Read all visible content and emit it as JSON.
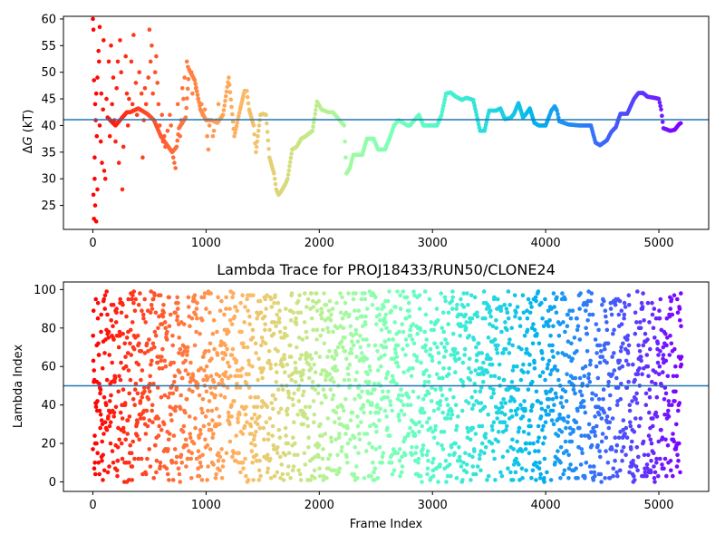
{
  "chart_data": [
    {
      "type": "scatter",
      "title": "",
      "xlabel": "",
      "ylabel": "ΔG (kT)",
      "ylabel_italic": "G",
      "xlim": [
        -260,
        5440
      ],
      "ylim": [
        20.5,
        60.5
      ],
      "xticks": [
        0,
        1000,
        2000,
        3000,
        4000,
        5000
      ],
      "yticks": [
        25,
        30,
        35,
        40,
        45,
        50,
        55,
        60
      ],
      "hline": 41.1,
      "hline_color": "#1f77b4",
      "colormap": "rainbow_r",
      "grid": false,
      "trace": [
        [
          130,
          41.5
        ],
        [
          200,
          40
        ],
        [
          300,
          42.5
        ],
        [
          330,
          42.5
        ],
        [
          400,
          43.2
        ],
        [
          480,
          42.2
        ],
        [
          540,
          41
        ],
        [
          600,
          38
        ],
        [
          650,
          36.5
        ],
        [
          700,
          35
        ],
        [
          740,
          36
        ],
        [
          760,
          39.5
        ],
        [
          820,
          41.5
        ],
        [
          850,
          50.5
        ],
        [
          900,
          48.5
        ],
        [
          950,
          43
        ],
        [
          1000,
          41
        ],
        [
          1050,
          41
        ],
        [
          1100,
          40.5
        ],
        [
          1150,
          42
        ],
        [
          1200,
          49
        ],
        [
          1250,
          38
        ],
        [
          1300,
          43
        ],
        [
          1340,
          46.5
        ],
        [
          1360,
          46.5
        ],
        [
          1380,
          43
        ],
        [
          1420,
          40
        ],
        [
          1440,
          35
        ],
        [
          1480,
          42
        ],
        [
          1500,
          42.2
        ],
        [
          1530,
          42
        ],
        [
          1560,
          34
        ],
        [
          1600,
          31
        ],
        [
          1620,
          28
        ],
        [
          1640,
          27
        ],
        [
          1660,
          27.5
        ],
        [
          1700,
          29
        ],
        [
          1720,
          30
        ],
        [
          1760,
          35.5
        ],
        [
          1800,
          36
        ],
        [
          1840,
          37.5
        ],
        [
          1880,
          38
        ],
        [
          1940,
          39
        ],
        [
          1980,
          44.5
        ],
        [
          2020,
          43
        ],
        [
          2080,
          42.5
        ],
        [
          2120,
          42.5
        ],
        [
          2180,
          41
        ],
        [
          2220,
          40
        ],
        [
          2240,
          31
        ],
        [
          2270,
          32
        ],
        [
          2300,
          34.5
        ],
        [
          2380,
          34.5
        ],
        [
          2420,
          37.5
        ],
        [
          2480,
          37.5
        ],
        [
          2520,
          35.5
        ],
        [
          2580,
          35.5
        ],
        [
          2620,
          37.5
        ],
        [
          2660,
          40
        ],
        [
          2700,
          41
        ],
        [
          2740,
          40.5
        ],
        [
          2780,
          40
        ],
        [
          2800,
          40
        ],
        [
          2840,
          41
        ],
        [
          2880,
          42
        ],
        [
          2920,
          40
        ],
        [
          2980,
          40
        ],
        [
          3040,
          40
        ],
        [
          3080,
          42
        ],
        [
          3120,
          46
        ],
        [
          3160,
          46.2
        ],
        [
          3200,
          45.5
        ],
        [
          3260,
          44.8
        ],
        [
          3300,
          45.2
        ],
        [
          3360,
          44.8
        ],
        [
          3390,
          42
        ],
        [
          3420,
          39
        ],
        [
          3460,
          39
        ],
        [
          3500,
          42.8
        ],
        [
          3560,
          42.8
        ],
        [
          3600,
          43.2
        ],
        [
          3640,
          41.2
        ],
        [
          3690,
          41.4
        ],
        [
          3720,
          42.2
        ],
        [
          3760,
          44.2
        ],
        [
          3800,
          41.5
        ],
        [
          3820,
          42
        ],
        [
          3860,
          43.2
        ],
        [
          3900,
          40.5
        ],
        [
          3940,
          40
        ],
        [
          4000,
          40
        ],
        [
          4050,
          42.8
        ],
        [
          4080,
          43.6
        ],
        [
          4100,
          42.8
        ],
        [
          4120,
          40.8
        ],
        [
          4200,
          40.2
        ],
        [
          4300,
          40
        ],
        [
          4400,
          40
        ],
        [
          4440,
          36.8
        ],
        [
          4480,
          36.3
        ],
        [
          4540,
          37.2
        ],
        [
          4580,
          38.8
        ],
        [
          4620,
          39.7
        ],
        [
          4660,
          42.2
        ],
        [
          4720,
          42.2
        ],
        [
          4780,
          45
        ],
        [
          4820,
          46.1
        ],
        [
          4860,
          46.1
        ],
        [
          4900,
          45.4
        ],
        [
          4960,
          45.2
        ],
        [
          5000,
          45
        ],
        [
          5020,
          43
        ],
        [
          5040,
          39.5
        ],
        [
          5100,
          39
        ],
        [
          5140,
          39.2
        ],
        [
          5180,
          40.3
        ],
        [
          5200,
          40.5
        ]
      ],
      "points": [
        [
          0,
          60
        ],
        [
          5,
          58
        ],
        [
          10,
          22.5
        ],
        [
          20,
          25
        ],
        [
          30,
          22
        ],
        [
          15,
          30
        ],
        [
          40,
          28
        ],
        [
          10,
          48.5
        ],
        [
          30,
          46
        ],
        [
          20,
          44
        ],
        [
          50,
          54
        ],
        [
          60,
          58.5
        ],
        [
          35,
          38
        ],
        [
          70,
          37
        ],
        [
          80,
          33
        ],
        [
          100,
          31.5
        ],
        [
          120,
          45
        ],
        [
          140,
          52
        ],
        [
          60,
          40
        ],
        [
          90,
          43
        ],
        [
          160,
          55
        ],
        [
          180,
          49
        ],
        [
          200,
          37
        ],
        [
          220,
          52
        ],
        [
          240,
          56
        ],
        [
          260,
          28
        ],
        [
          280,
          42
        ],
        [
          300,
          46
        ],
        [
          320,
          45
        ],
        [
          340,
          52
        ],
        [
          360,
          57
        ],
        [
          380,
          48
        ],
        [
          420,
          43
        ],
        [
          440,
          34
        ],
        [
          460,
          47
        ],
        [
          500,
          58
        ],
        [
          520,
          55
        ],
        [
          560,
          53
        ],
        [
          580,
          44
        ],
        [
          620,
          37
        ],
        [
          660,
          39
        ],
        [
          680,
          42
        ],
        [
          720,
          33
        ],
        [
          780,
          41
        ],
        [
          800,
          45
        ],
        [
          830,
          52
        ],
        [
          870,
          50
        ],
        [
          960,
          44
        ],
        [
          1020,
          35.5
        ],
        [
          1060,
          38
        ],
        [
          5,
          27
        ],
        [
          15,
          34
        ],
        [
          25,
          41
        ],
        [
          40,
          49
        ],
        [
          55,
          52
        ],
        [
          75,
          46
        ],
        [
          95,
          56
        ],
        [
          110,
          30
        ],
        [
          150,
          38
        ],
        [
          170,
          44
        ],
        [
          190,
          41
        ],
        [
          210,
          47
        ],
        [
          230,
          33
        ],
        [
          250,
          50
        ],
        [
          270,
          36
        ],
        [
          290,
          53
        ],
        [
          310,
          40
        ],
        [
          350,
          44
        ],
        [
          390,
          42
        ],
        [
          410,
          50
        ],
        [
          430,
          46
        ],
        [
          450,
          41
        ],
        [
          470,
          44
        ],
        [
          490,
          49
        ],
        [
          510,
          52
        ],
        [
          530,
          46
        ],
        [
          550,
          50
        ],
        [
          570,
          48
        ],
        [
          590,
          40
        ],
        [
          610,
          42
        ],
        [
          630,
          38
        ],
        [
          640,
          36
        ],
        [
          690,
          40
        ],
        [
          710,
          34
        ],
        [
          730,
          32
        ],
        [
          750,
          44
        ],
        [
          770,
          38
        ],
        [
          790,
          47
        ],
        [
          810,
          49
        ],
        [
          840,
          51
        ],
        [
          880,
          46
        ],
        [
          910,
          47
        ],
        [
          930,
          45
        ],
        [
          970,
          42
        ],
        [
          990,
          43
        ],
        [
          1010,
          38
        ],
        [
          1030,
          40
        ],
        [
          1070,
          39
        ],
        [
          1090,
          41
        ],
        [
          1110,
          44
        ]
      ]
    },
    {
      "type": "scatter",
      "title": "Lambda Trace for PROJ18433/RUN50/CLONE24",
      "xlabel": "Frame Index",
      "ylabel": "Lambda Index",
      "xlim": [
        -260,
        5440
      ],
      "ylim": [
        -4.95,
        103.95
      ],
      "xticks": [
        0,
        1000,
        2000,
        3000,
        4000,
        5000
      ],
      "yticks": [
        0,
        20,
        40,
        60,
        80,
        100
      ],
      "hline": 50,
      "hline_color": "#1f77b4",
      "colormap": "rainbow_r",
      "grid": false,
      "x_range": [
        0,
        5200
      ],
      "y_range": [
        0,
        99
      ]
    }
  ]
}
